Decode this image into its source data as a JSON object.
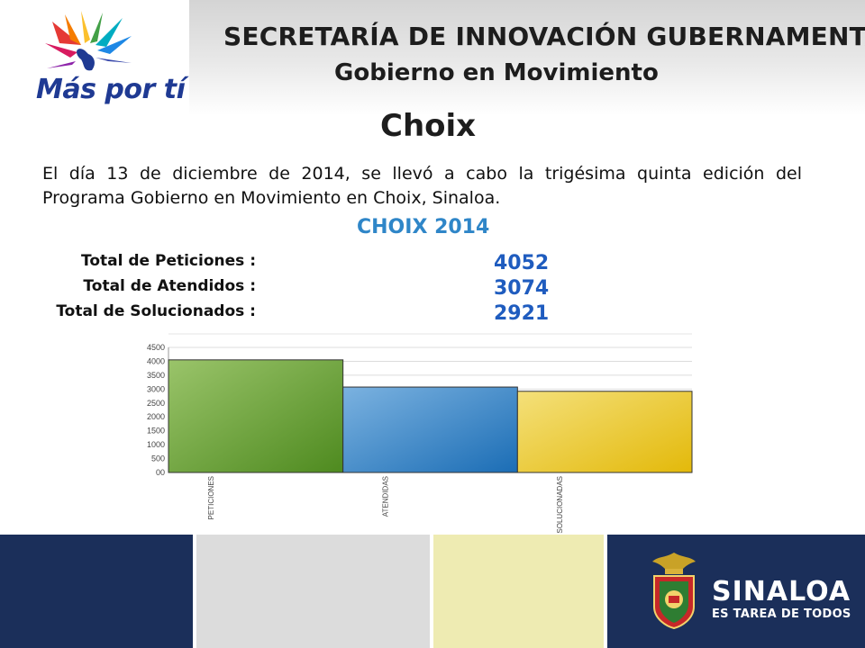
{
  "header": {
    "logo_text": "Más por tí",
    "title": "SECRETARÍA DE INNOVACIÓN GUBERNAMENTAL",
    "subtitle": "Gobierno en Movimiento"
  },
  "page_title": "Choix",
  "description": "El día 13 de diciembre de 2014, se llevó a cabo la trigésima quinta edición del Programa Gobierno en Movimiento en Choix, Sinaloa.",
  "summary": {
    "title": "CHOIX 2014",
    "stats": [
      {
        "label": "Total de Peticiones :",
        "value": "4052"
      },
      {
        "label": "Total de Atendidos :",
        "value": "3074"
      },
      {
        "label": "Total de Solucionados :",
        "value": "2921"
      }
    ]
  },
  "chart_data": {
    "type": "bar",
    "categories": [
      "PETICIONES",
      "ATENDIDAS",
      "SOLUCIONADAS"
    ],
    "values": [
      4052,
      3074,
      2921
    ],
    "ylim": [
      0,
      4500
    ],
    "yticks": [
      "00",
      "500",
      "1000",
      "1500",
      "2000",
      "2500",
      "3000",
      "3500",
      "4000",
      "4500"
    ],
    "colors": [
      "#5f9a2e",
      "#2f80c6",
      "#e8c21e"
    ],
    "grid": true
  },
  "footer": {
    "brand": "SINALOA",
    "tagline": "ES TAREA DE TODOS",
    "colors": [
      "#1b2f5a",
      "#dcdcdc",
      "#eeebb2",
      "#1b2f5a"
    ]
  }
}
